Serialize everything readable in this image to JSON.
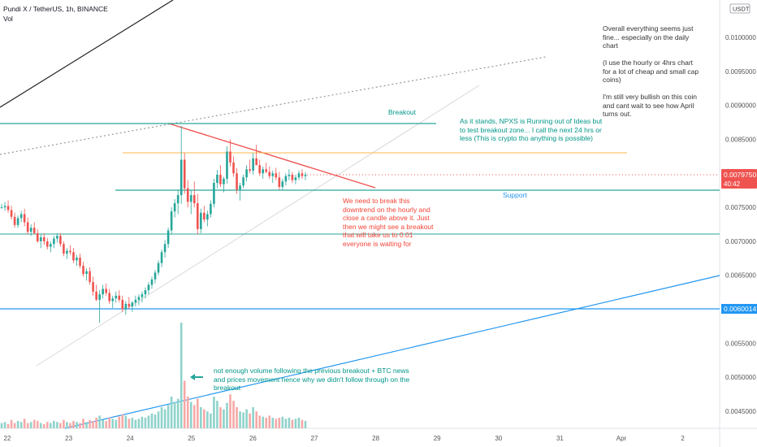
{
  "header": {
    "symbol": "Pundi X / TetherUS, 1h, BINANCE",
    "volume_label": "Vol",
    "currency_badge": "USDT"
  },
  "colors": {
    "up": "#26a69a",
    "down": "#ef5350",
    "cyan_line": "#2196f3",
    "teal_line": "#26a69a",
    "orange_line": "#ffb74d",
    "trend_red": "#ef5350",
    "text_teal": "#009688",
    "text_red": "#f44336",
    "text_blue": "#2196f3",
    "text_gray": "#333333"
  },
  "chart_data": {
    "type": "candlestick",
    "x_axis_labels": [
      "22",
      "23",
      "24",
      "25",
      "26",
      "27",
      "28",
      "29",
      "30",
      "31",
      "Apr",
      "2"
    ],
    "y_axis_labels": [
      "0.0045000",
      "0.0050000",
      "0.0055000",
      "0.0060000",
      "0.0065000",
      "0.0070000",
      "0.0075000",
      "0.0080000",
      "0.0085000",
      "0.0090000",
      "0.0095000",
      "0.0100000"
    ],
    "ylim": [
      0.00433,
      0.01045
    ],
    "last_price": {
      "value": "0.0079750",
      "countdown": "40:42"
    },
    "marked_level": "0.0060014",
    "horizontal_levels": [
      0.008752,
      0.0078,
      0.0070964,
      0.0060014,
      0.0083
    ],
    "candles": [
      [
        0.0075,
        0.00755,
        0.00748,
        0.0075
      ],
      [
        0.0075,
        0.00758,
        0.00745,
        0.00752
      ],
      [
        0.00752,
        0.0076,
        0.00742,
        0.00746
      ],
      [
        0.00746,
        0.00752,
        0.00732,
        0.00736
      ],
      [
        0.00736,
        0.00742,
        0.0072,
        0.00724
      ],
      [
        0.00724,
        0.00738,
        0.0072,
        0.00734
      ],
      [
        0.00734,
        0.00745,
        0.00728,
        0.0074
      ],
      [
        0.0074,
        0.00748,
        0.00722,
        0.00728
      ],
      [
        0.00728,
        0.00735,
        0.0071,
        0.00714
      ],
      [
        0.00714,
        0.00725,
        0.00708,
        0.0072
      ],
      [
        0.0072,
        0.00728,
        0.0071,
        0.00712
      ],
      [
        0.00712,
        0.00718,
        0.00698,
        0.007
      ],
      [
        0.007,
        0.0071,
        0.0069,
        0.00706
      ],
      [
        0.00706,
        0.00712,
        0.00695,
        0.007
      ],
      [
        0.007,
        0.00705,
        0.00688,
        0.00692
      ],
      [
        0.00692,
        0.007,
        0.00684,
        0.00696
      ],
      [
        0.00696,
        0.00708,
        0.0069,
        0.00704
      ],
      [
        0.00704,
        0.00712,
        0.00698,
        0.00708
      ],
      [
        0.00708,
        0.00712,
        0.00692,
        0.00696
      ],
      [
        0.00696,
        0.007,
        0.00678,
        0.00682
      ],
      [
        0.00682,
        0.0069,
        0.00674,
        0.00686
      ],
      [
        0.00686,
        0.00694,
        0.0068,
        0.00684
      ],
      [
        0.00684,
        0.0069,
        0.00668,
        0.00672
      ],
      [
        0.00672,
        0.0068,
        0.00664,
        0.00676
      ],
      [
        0.00676,
        0.00682,
        0.0066,
        0.00664
      ],
      [
        0.00664,
        0.0067,
        0.00648,
        0.00652
      ],
      [
        0.00652,
        0.0066,
        0.00642,
        0.00656
      ],
      [
        0.00656,
        0.00662,
        0.00636,
        0.0064
      ],
      [
        0.0064,
        0.00648,
        0.0062,
        0.00626
      ],
      [
        0.00626,
        0.00636,
        0.00612,
        0.00614
      ],
      [
        0.00614,
        0.00628,
        0.0058,
        0.00622
      ],
      [
        0.00622,
        0.00636,
        0.00616,
        0.0063
      ],
      [
        0.0063,
        0.00638,
        0.0062,
        0.00624
      ],
      [
        0.00624,
        0.0063,
        0.00608,
        0.00612
      ],
      [
        0.00612,
        0.0062,
        0.00602,
        0.00616
      ],
      [
        0.00616,
        0.00626,
        0.0061,
        0.0062
      ],
      [
        0.0062,
        0.00628,
        0.0061,
        0.00614
      ],
      [
        0.00614,
        0.0062,
        0.00596,
        0.006
      ],
      [
        0.006,
        0.00612,
        0.00592,
        0.00608
      ],
      [
        0.00608,
        0.00618,
        0.006,
        0.00604
      ],
      [
        0.00604,
        0.00612,
        0.00596,
        0.0061
      ],
      [
        0.0061,
        0.0062,
        0.00604,
        0.00614
      ],
      [
        0.00614,
        0.00622,
        0.00606,
        0.00618
      ],
      [
        0.00618,
        0.00626,
        0.0061,
        0.00622
      ],
      [
        0.00622,
        0.00632,
        0.00616,
        0.00628
      ],
      [
        0.00628,
        0.0064,
        0.00622,
        0.00636
      ],
      [
        0.00636,
        0.00648,
        0.0063,
        0.00644
      ],
      [
        0.00644,
        0.00658,
        0.00638,
        0.00654
      ],
      [
        0.00654,
        0.00672,
        0.0065,
        0.00668
      ],
      [
        0.00668,
        0.00688,
        0.00662,
        0.00684
      ],
      [
        0.00684,
        0.00702,
        0.00676,
        0.00696
      ],
      [
        0.00696,
        0.0072,
        0.0069,
        0.00716
      ],
      [
        0.00716,
        0.0075,
        0.0071,
        0.00744
      ],
      [
        0.00744,
        0.00762,
        0.00735,
        0.00756
      ],
      [
        0.00756,
        0.00775,
        0.0074,
        0.00768
      ],
      [
        0.00768,
        0.0087,
        0.00755,
        0.0082
      ],
      [
        0.0082,
        0.0083,
        0.0077,
        0.00778
      ],
      [
        0.00778,
        0.0079,
        0.0075,
        0.00758
      ],
      [
        0.00758,
        0.00775,
        0.0074,
        0.00768
      ],
      [
        0.00768,
        0.00788,
        0.0075,
        0.00756
      ],
      [
        0.00756,
        0.0077,
        0.0071,
        0.00718
      ],
      [
        0.00718,
        0.00748,
        0.00712,
        0.00742
      ],
      [
        0.00742,
        0.00752,
        0.00728,
        0.00732
      ],
      [
        0.00732,
        0.00745,
        0.00722,
        0.0074
      ],
      [
        0.0074,
        0.0076,
        0.00735,
        0.00755
      ],
      [
        0.00755,
        0.00792,
        0.0075,
        0.00786
      ],
      [
        0.00786,
        0.00805,
        0.00778,
        0.00798
      ],
      [
        0.00798,
        0.00812,
        0.0078,
        0.00784
      ],
      [
        0.00784,
        0.00795,
        0.00772,
        0.00792
      ],
      [
        0.00792,
        0.0084,
        0.00785,
        0.00832
      ],
      [
        0.00832,
        0.0085,
        0.0081,
        0.00816
      ],
      [
        0.00816,
        0.00825,
        0.00795,
        0.008
      ],
      [
        0.008,
        0.00808,
        0.0077,
        0.00776
      ],
      [
        0.00776,
        0.00786,
        0.0076,
        0.00782
      ],
      [
        0.00782,
        0.00798,
        0.00778,
        0.00794
      ],
      [
        0.00794,
        0.00812,
        0.00788,
        0.00806
      ],
      [
        0.00806,
        0.0082,
        0.008,
        0.00804
      ],
      [
        0.00804,
        0.0083,
        0.00798,
        0.00822
      ],
      [
        0.00822,
        0.00842,
        0.00812,
        0.00812
      ],
      [
        0.00812,
        0.0082,
        0.00796,
        0.008
      ],
      [
        0.008,
        0.0081,
        0.00792,
        0.00806
      ],
      [
        0.00806,
        0.00816,
        0.008,
        0.00802
      ],
      [
        0.00802,
        0.0081,
        0.00792,
        0.00796
      ],
      [
        0.00796,
        0.00804,
        0.00786,
        0.008
      ],
      [
        0.008,
        0.00808,
        0.0079,
        0.00794
      ],
      [
        0.00794,
        0.00802,
        0.00776,
        0.0078
      ],
      [
        0.0078,
        0.00792,
        0.00776,
        0.00788
      ],
      [
        0.00788,
        0.008,
        0.00782,
        0.00796
      ],
      [
        0.00796,
        0.00806,
        0.0079,
        0.00798
      ],
      [
        0.00798,
        0.00802,
        0.00786,
        0.0079
      ],
      [
        0.0079,
        0.00798,
        0.00784,
        0.00794
      ],
      [
        0.00794,
        0.00804,
        0.0079,
        0.008
      ],
      [
        0.008,
        0.00806,
        0.00792,
        0.00796
      ],
      [
        0.00796,
        0.00802,
        0.0079,
        0.00798
      ]
    ],
    "volumes": [
      0.05,
      0.06,
      0.04,
      0.08,
      0.05,
      0.07,
      0.06,
      0.09,
      0.05,
      0.06,
      0.08,
      0.07,
      0.05,
      0.04,
      0.06,
      0.05,
      0.07,
      0.06,
      0.05,
      0.08,
      0.06,
      0.05,
      0.07,
      0.06,
      0.05,
      0.09,
      0.06,
      0.08,
      0.07,
      0.1,
      0.12,
      0.08,
      0.07,
      0.1,
      0.09,
      0.08,
      0.11,
      0.13,
      0.12,
      0.09,
      0.1,
      0.08,
      0.09,
      0.11,
      0.1,
      0.12,
      0.14,
      0.13,
      0.16,
      0.2,
      0.18,
      0.22,
      0.3,
      0.25,
      0.28,
      1.0,
      0.45,
      0.3,
      0.25,
      0.22,
      0.28,
      0.2,
      0.18,
      0.16,
      0.14,
      0.3,
      0.26,
      0.2,
      0.18,
      0.24,
      0.32,
      0.26,
      0.2,
      0.16,
      0.15,
      0.18,
      0.14,
      0.2,
      0.16,
      0.12,
      0.11,
      0.1,
      0.12,
      0.1,
      0.09,
      0.1,
      0.11,
      0.09,
      0.1,
      0.08,
      0.09,
      0.1,
      0.08,
      0.07
    ]
  },
  "annotations": {
    "breakout_label": "Breakout",
    "support_label": "Support",
    "teal_note": "As it stands, NPXS is Running out of Ideas but to test breakout zone... I call the next 24 hrs or less (This is crypto tho anything is possible)",
    "red_note": "We need to break this downtrend on the hourly and close a candle above it. Just then we might see a breakout that will take us to 0.01 everyone is waiting for",
    "volume_note": "not enough volume following the previous breakout + BTC news and prices movement hence why we didn't follow through on the breakout",
    "top_right_note_1": "Overall everything seems just fine... especially on the daily chart",
    "top_right_note_2": "(I use the hourly or 4hrs chart for a lot of cheap and small cap coins)",
    "top_right_note_3": "I'm still very bullish on this coin and cant wait to see how April turns out."
  }
}
